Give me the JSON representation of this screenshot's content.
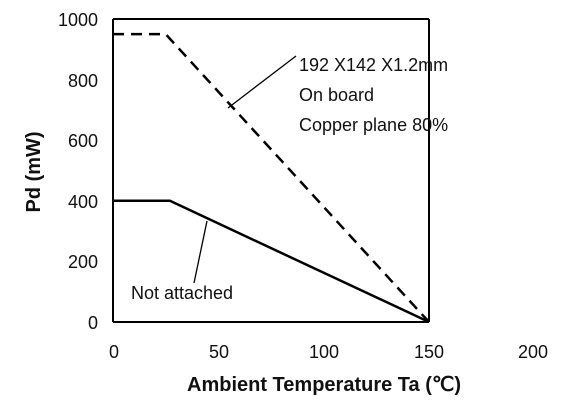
{
  "chart_data": {
    "type": "line",
    "xlabel": "Ambient Temperature Ta (℃)",
    "ylabel": "Pd (mW)",
    "xlim": [
      0,
      200
    ],
    "ylim": [
      0,
      1000
    ],
    "xticks": [
      "0",
      "50",
      "100",
      "150",
      "200"
    ],
    "yticks": [
      "0",
      "200",
      "400",
      "600",
      "800",
      "1000"
    ],
    "grid": "vertical and horizontal, at x=150 and y=1000 only (box top)",
    "series": [
      {
        "name": "192 X142 X1.2mm On board Copper plane 80%",
        "style": "dashed",
        "x": [
          0,
          25,
          150
        ],
        "y": [
          950,
          950,
          0
        ]
      },
      {
        "name": "Not attached",
        "style": "solid",
        "x": [
          0,
          27,
          150
        ],
        "y": [
          400,
          400,
          0
        ]
      }
    ],
    "annotations": [
      {
        "lines": [
          "192 X142 X1.2mm",
          "On board",
          "Copper plane 80%"
        ],
        "points_to_series": 0
      },
      {
        "lines": [
          "Not attached"
        ],
        "points_to_series": 1
      }
    ]
  }
}
